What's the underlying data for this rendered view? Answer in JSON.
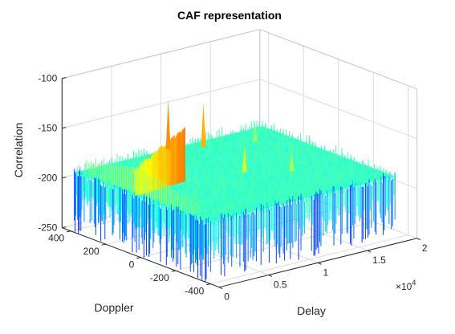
{
  "chart_data": {
    "type": "surface",
    "title": "CAF representation",
    "xlabel": "Delay",
    "ylabel": "Doppler",
    "zlabel": "Correlation",
    "x_exponent_label": "×10",
    "x_exponent": "4",
    "xlim": [
      0,
      20000
    ],
    "ylim": [
      -450,
      450
    ],
    "zlim": [
      -250,
      -100
    ],
    "x_ticks": [
      0,
      5000,
      10000,
      15000,
      20000
    ],
    "x_tick_labels": [
      "0",
      "0.5",
      "1",
      "1.5",
      "2"
    ],
    "y_ticks": [
      -400,
      -200,
      0,
      200,
      400
    ],
    "y_tick_labels": [
      "-400",
      "-200",
      "0",
      "200",
      "400"
    ],
    "z_ticks": [
      -250,
      -200,
      -150,
      -100
    ],
    "z_tick_labels": [
      "-250",
      "-200",
      "-150",
      "-100"
    ],
    "grid": true,
    "colormap": "jet",
    "surface_extent": {
      "x": [
        0,
        19000
      ],
      "y": [
        -380,
        380
      ]
    },
    "noise_floor": -190,
    "peaks": [
      {
        "x": 1000,
        "y": 30,
        "z": -165
      },
      {
        "x": 9500,
        "y": 380,
        "z": -140
      },
      {
        "x": 12000,
        "y": 320,
        "z": -145
      },
      {
        "x": 10500,
        "y": 0,
        "z": -163
      },
      {
        "x": 13500,
        "y": -100,
        "z": -168
      },
      {
        "x": 16000,
        "y": 250,
        "z": -172
      }
    ]
  }
}
